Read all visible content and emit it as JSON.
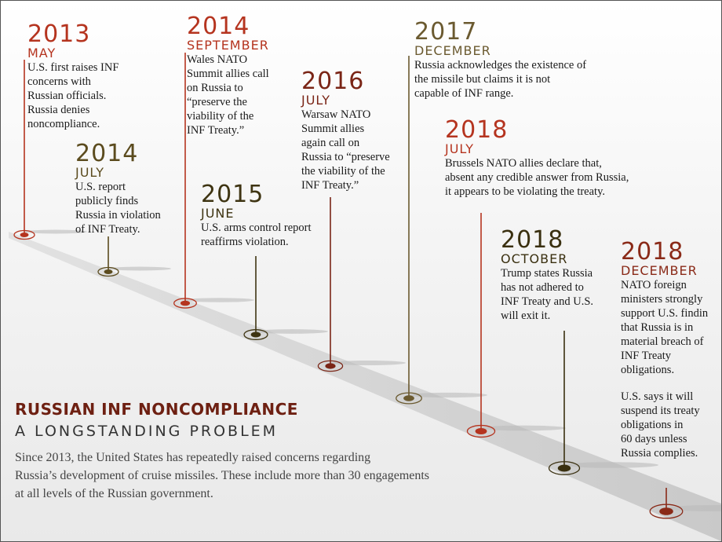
{
  "title": "RUSSIAN INF NONCOMPLIANCE",
  "subtitle": "A LONGSTANDING PROBLEM",
  "description": [
    "Since 2013, the United States has repeatedly raised concerns regarding",
    "Russia’s development of cruise missiles. These include more than 30 engagements",
    "at all levels of the Russian government."
  ],
  "events": [
    {
      "year": "2013",
      "month": "MAY",
      "lines": [
        "U.S. first raises INF",
        "concerns with",
        "Russian officials.",
        "Russia denies",
        "noncompliance."
      ]
    },
    {
      "year": "2014",
      "month": "JULY",
      "lines": [
        "U.S. report",
        "publicly finds",
        "Russia in violation",
        "of INF Treaty."
      ]
    },
    {
      "year": "2014",
      "month": "SEPTEMBER",
      "lines": [
        "Wales NATO",
        "Summit allies call",
        "on Russia to",
        "“preserve the",
        "viability of the",
        "INF Treaty.”"
      ]
    },
    {
      "year": "2015",
      "month": "JUNE",
      "lines": [
        "U.S. arms control report",
        "reaffirms violation."
      ]
    },
    {
      "year": "2016",
      "month": "JULY",
      "lines": [
        "Warsaw NATO",
        "Summit allies",
        "again call on",
        "Russia to “preserve",
        "the viability of the",
        "INF Treaty.”"
      ]
    },
    {
      "year": "2017",
      "month": "DECEMBER",
      "lines": [
        "Russia acknowledges the existence of",
        "the missile but claims it is not",
        "capable of INF range."
      ]
    },
    {
      "year": "2018",
      "month": "JULY",
      "lines": [
        "Brussels NATO allies declare that,",
        "absent any credible answer from Russia,",
        "it appears to be violating the treaty."
      ]
    },
    {
      "year": "2018",
      "month": "OCTOBER",
      "lines": [
        "Trump states Russia",
        "has not adhered to",
        "INF Treaty and U.S.",
        "will exit it."
      ]
    },
    {
      "year": "2018",
      "month": "DECEMBER",
      "lines": [
        "NATO foreign",
        "ministers strongly",
        "support U.S. findin",
        "that Russia is in",
        "material breach of",
        "INF Treaty",
        "obligations."
      ],
      "lines2": [
        "U.S. says it will",
        "suspend its treaty",
        "obligations in",
        "60 days unless",
        "Russia complies."
      ]
    }
  ]
}
